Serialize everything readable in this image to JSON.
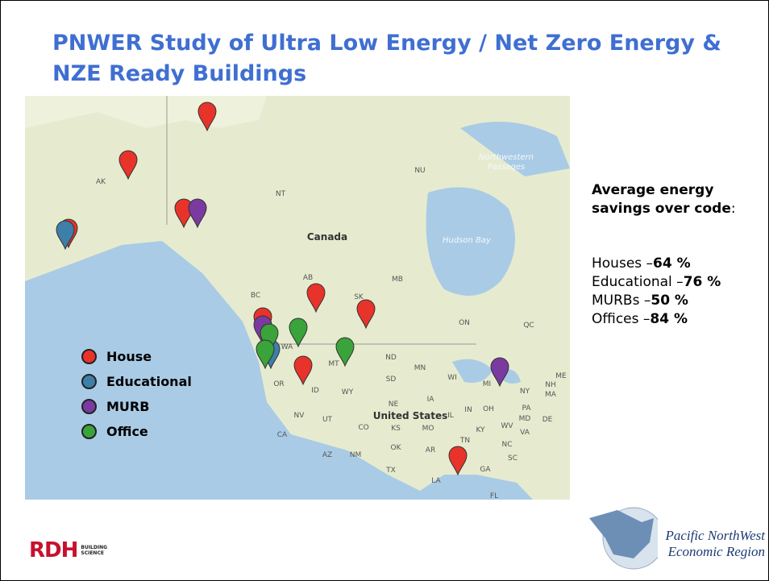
{
  "title": "PNWER Study of Ultra Low Energy / Net Zero Energy & NZE Ready Buildings",
  "legend": [
    {
      "name": "House",
      "color": "#e8332a"
    },
    {
      "name": "Educational",
      "color": "#3d7fa8"
    },
    {
      "name": "MURB",
      "color": "#7a3aa0"
    },
    {
      "name": "Office",
      "color": "#3aa33a"
    }
  ],
  "summary": {
    "heading": "Average energy savings over code",
    "heading_suffix": ":",
    "items": [
      {
        "label": "Houses –",
        "value": "64 %"
      },
      {
        "label": "Educational –",
        "value": "76 %"
      },
      {
        "label": "MURBs –",
        "value": "50 %"
      },
      {
        "label": "Offices –",
        "value": "84 %"
      }
    ]
  },
  "map": {
    "labels": [
      "Northwestern",
      "Passages",
      "NU",
      "AK",
      "NT",
      "Canada",
      "Hudson Bay",
      "BC",
      "AB",
      "MB",
      "SK",
      "ON",
      "QC",
      "WA",
      "ND",
      "MN",
      "WI",
      "MI",
      "ME",
      "NY",
      "NH",
      "MA",
      "SD",
      "WY",
      "OR",
      "ID",
      "MT",
      "NE",
      "IA",
      "IL",
      "IN",
      "OH",
      "PA",
      "MD",
      "DE",
      "NV",
      "UT",
      "United States",
      "CO",
      "KS",
      "MO",
      "KY",
      "WV",
      "VA",
      "CA",
      "NC",
      "OK",
      "AR",
      "TN",
      "SC",
      "AZ",
      "NM",
      "GA",
      "TX",
      "LA",
      "FL"
    ]
  },
  "logos": {
    "rdh": "RDH",
    "rdh_sub": [
      "BUILDING",
      "SCIENCE"
    ],
    "pnwer": [
      "Pacific NorthWest",
      "Economic Region"
    ]
  }
}
